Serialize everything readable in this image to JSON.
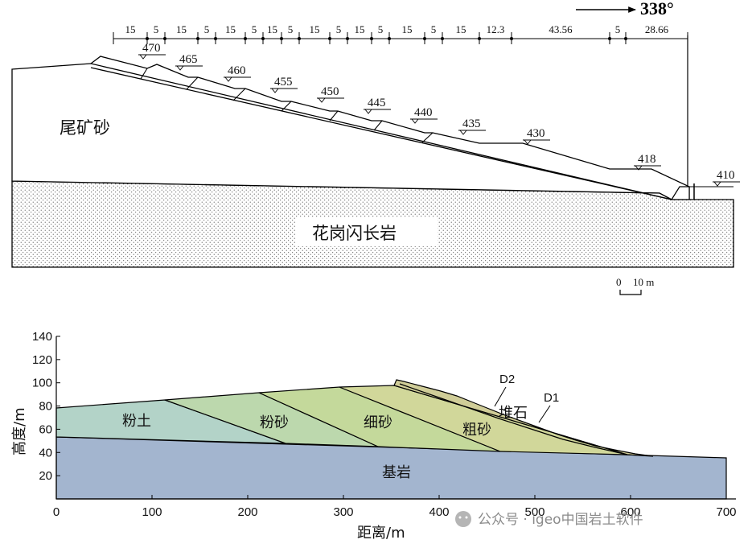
{
  "top_diagram": {
    "direction_label": "338°",
    "dimensions": [
      "15",
      "5",
      "15",
      "5",
      "15",
      "5",
      "15",
      "5",
      "15",
      "5",
      "15",
      "5",
      "15",
      "5",
      "15",
      "12.3",
      "43.56",
      "5",
      "28.66"
    ],
    "elevations": [
      "470",
      "465",
      "460",
      "455",
      "450",
      "445",
      "440",
      "435",
      "430",
      "418",
      "410"
    ],
    "tailings_label": "尾矿砂",
    "bedrock_label": "花岗闪长岩",
    "scale_zero": "0",
    "scale_label": "10 m"
  },
  "bottom_chart": {
    "ylabel": "高度/m",
    "xlabel": "距离/m",
    "y_ticks": [
      "20",
      "40",
      "60",
      "80",
      "100",
      "120",
      "140"
    ],
    "x_ticks": [
      "0",
      "100",
      "200",
      "300",
      "400",
      "500",
      "600",
      "700"
    ],
    "layers": [
      "粉土",
      "粉砂",
      "细砂",
      "粗砂",
      "堆石",
      "基岩"
    ],
    "markers": [
      "D2",
      "D1"
    ],
    "colors": {
      "bedrock": "#a3b5cf",
      "silt": "#b3d3c8",
      "silty_sand": "#bcd8ad",
      "fine_sand": "#c4d99b",
      "coarse_sand": "#d1d79a",
      "rockfill": "#d0cd98"
    }
  },
  "watermark": "公众号 · igeo中国岩土软件"
}
